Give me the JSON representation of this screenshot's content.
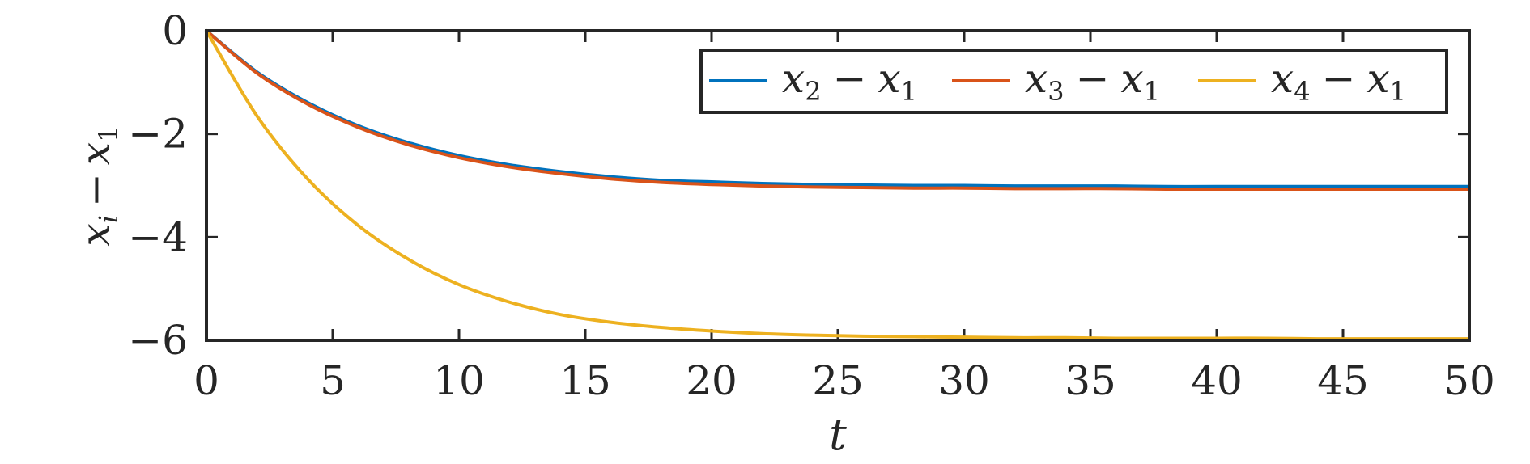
{
  "chart_data": {
    "type": "line",
    "title": "",
    "xlabel": "t",
    "ylabel": "x_i - x_1",
    "xlim": [
      0,
      50
    ],
    "ylim": [
      -6,
      0
    ],
    "xticks": [
      0,
      5,
      10,
      15,
      20,
      25,
      30,
      35,
      40,
      45,
      50
    ],
    "yticks": [
      0,
      -2,
      -4,
      -6
    ],
    "xtick_labels": [
      "0",
      "5",
      "10",
      "15",
      "20",
      "25",
      "30",
      "35",
      "40",
      "45",
      "50"
    ],
    "ytick_labels": [
      "0",
      "−2",
      "−4",
      "−6"
    ],
    "grid": false,
    "legend_position": "top-right",
    "x": [
      0,
      2,
      4,
      6,
      8,
      10,
      12,
      14,
      16,
      18,
      20,
      22,
      24,
      26,
      28,
      30,
      32,
      34,
      36,
      38,
      40,
      42,
      44,
      46,
      48,
      50
    ],
    "series": [
      {
        "name": "x_2 - x_1",
        "color": "#0072BD",
        "values": [
          0,
          -0.8,
          -1.39,
          -1.84,
          -2.17,
          -2.42,
          -2.6,
          -2.73,
          -2.83,
          -2.9,
          -2.93,
          -2.96,
          -2.98,
          -2.99,
          -3.0,
          -3.0,
          -3.01,
          -3.01,
          -3.01,
          -3.02,
          -3.02,
          -3.02,
          -3.02,
          -3.02,
          -3.02,
          -3.02
        ]
      },
      {
        "name": "x_3 - x_1",
        "color": "#D95319",
        "values": [
          0,
          -0.82,
          -1.42,
          -1.87,
          -2.21,
          -2.46,
          -2.64,
          -2.77,
          -2.87,
          -2.94,
          -2.98,
          -3.01,
          -3.03,
          -3.04,
          -3.05,
          -3.05,
          -3.06,
          -3.06,
          -3.06,
          -3.07,
          -3.07,
          -3.07,
          -3.07,
          -3.07,
          -3.07,
          -3.07
        ]
      },
      {
        "name": "x_4 - x_1",
        "color": "#EDB120",
        "values": [
          0,
          -1.65,
          -2.87,
          -3.77,
          -4.43,
          -4.92,
          -5.26,
          -5.5,
          -5.65,
          -5.75,
          -5.82,
          -5.87,
          -5.9,
          -5.92,
          -5.93,
          -5.94,
          -5.95,
          -5.95,
          -5.96,
          -5.96,
          -5.96,
          -5.96,
          -5.97,
          -5.97,
          -5.97,
          -5.97
        ]
      }
    ],
    "legend": {
      "entries": [
        {
          "sub_a": "2",
          "sub_b": "1"
        },
        {
          "sub_a": "3",
          "sub_b": "1"
        },
        {
          "sub_a": "4",
          "sub_b": "1"
        }
      ],
      "var": "x",
      "minus": "−"
    },
    "ylabel_parts": {
      "a": "x",
      "a_sub": "i",
      "minus": "−",
      "b": "x",
      "b_sub": "1"
    }
  }
}
